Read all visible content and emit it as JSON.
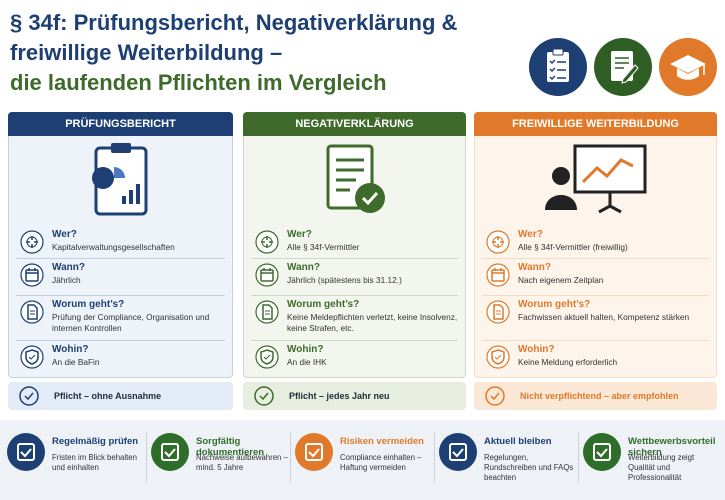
{
  "header": {
    "title_lines": [
      "§ 34f: Prüfungsbericht, Negativerklärung &",
      "freiwillige Weiterbildung –",
      "die laufenden Pflichten im Vergleich"
    ]
  },
  "columns": [
    {
      "heading": "PRÜFUNGSBERICHT",
      "rows": [
        {
          "label": "Wer?",
          "text": "Kapitalverwaltungsgesellschaften"
        },
        {
          "label": "Wann?",
          "text": "Jährlich"
        },
        {
          "label": "Worum geht’s?",
          "text": "Prüfung der Compliance, Organisation und internen Kontrollen"
        },
        {
          "label": "Wohin?",
          "text": "An die BaFin"
        }
      ],
      "footer": "Pflicht – ohne Ausnahme"
    },
    {
      "heading": "NEGATIVERKLÄRUNG",
      "rows": [
        {
          "label": "Wer?",
          "text": "Alle § 34f-Vermittler"
        },
        {
          "label": "Wann?",
          "text": "Jährlich (spätestens bis 31.12.)"
        },
        {
          "label": "Worum geht’s?",
          "text": "Keine Meldepflichten verletzt, keine Insolvenz, keine Strafen, etc."
        },
        {
          "label": "Wohin?",
          "text": "An die IHK"
        }
      ],
      "footer": "Pflicht – jedes Jahr neu"
    },
    {
      "heading": "FREIWILLIGE WEITERBILDUNG",
      "rows": [
        {
          "label": "Wer?",
          "text": "Alle § 34f-Vermittler (freiwillig)"
        },
        {
          "label": "Wann?",
          "text": "Nach eigenem Zeitplan"
        },
        {
          "label": "Worum geht’s?",
          "text": "Fachwissen aktuell halten, Kompetenz stärken"
        },
        {
          "label": "Wohin?",
          "text": "Keine Meldung erforderlich"
        }
      ],
      "footer": "Nicht verpflichtend – aber empfohlen"
    }
  ],
  "tips": [
    {
      "title": "Regelmäßig prüfen",
      "text": "Fristen im Blick behalten und einhalten"
    },
    {
      "title": "Sorgfältig dokumentieren",
      "text": "Nachweise aufbewahren – mind. 5 Jahre"
    },
    {
      "title": "Risiken vermeiden",
      "text": "Compliance einhalten – Haftung vermeiden"
    },
    {
      "title": "Aktuell bleiben",
      "text": "Regelungen, Rundschreiben und FAQs beachten"
    },
    {
      "title": "Wettbewerbsvorteil sichern",
      "text": "Weiterbildung zeigt Qualität und Professionalität"
    }
  ]
}
